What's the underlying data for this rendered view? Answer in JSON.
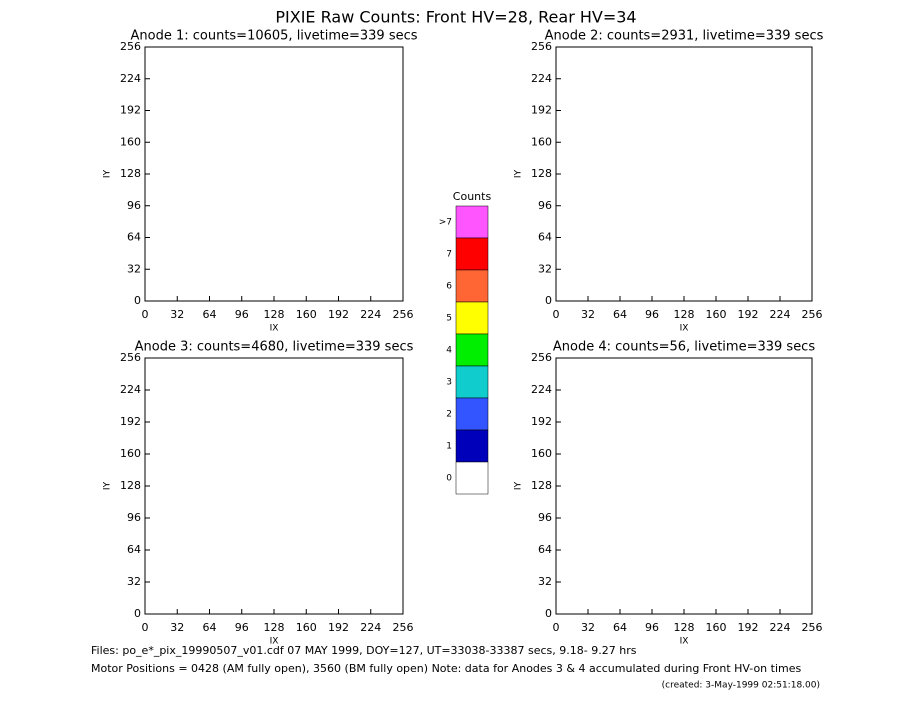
{
  "title": "PIXIE Raw Counts:  Front HV=28, Rear HV=34",
  "chart_data": [
    {
      "type": "scatter",
      "title": "Anode 1: counts=10605, livetime=339 secs",
      "xlabel": "IX",
      "ylabel": "IY",
      "xlim": [
        0,
        256
      ],
      "ylim": [
        0,
        256
      ],
      "xticks": [
        0,
        32,
        64,
        96,
        128,
        160,
        192,
        224,
        256
      ],
      "yticks": [
        0,
        32,
        64,
        96,
        128,
        160,
        192,
        224,
        256
      ]
    },
    {
      "type": "scatter",
      "title": "Anode 2: counts=2931, livetime=339 secs",
      "xlabel": "IX",
      "ylabel": "IY",
      "xlim": [
        0,
        256
      ],
      "ylim": [
        0,
        256
      ],
      "xticks": [
        0,
        32,
        64,
        96,
        128,
        160,
        192,
        224,
        256
      ],
      "yticks": [
        0,
        32,
        64,
        96,
        128,
        160,
        192,
        224,
        256
      ]
    },
    {
      "type": "scatter",
      "title": "Anode 3: counts=4680, livetime=339 secs",
      "xlabel": "IX",
      "ylabel": "IY",
      "xlim": [
        0,
        256
      ],
      "ylim": [
        0,
        256
      ],
      "xticks": [
        0,
        32,
        64,
        96,
        128,
        160,
        192,
        224,
        256
      ],
      "yticks": [
        0,
        32,
        64,
        96,
        128,
        160,
        192,
        224,
        256
      ]
    },
    {
      "type": "scatter",
      "title": "Anode 4: counts=56, livetime=339 secs",
      "xlabel": "IX",
      "ylabel": "IY",
      "xlim": [
        0,
        256
      ],
      "ylim": [
        0,
        256
      ],
      "xticks": [
        0,
        32,
        64,
        96,
        128,
        160,
        192,
        224,
        256
      ],
      "yticks": [
        0,
        32,
        64,
        96,
        128,
        160,
        192,
        224,
        256
      ]
    }
  ],
  "colorbar": {
    "title": "Counts",
    "levels": [
      {
        "label": ">7",
        "color": "#ff55ff"
      },
      {
        "label": "7",
        "color": "#ff0000"
      },
      {
        "label": "6",
        "color": "#ff6633"
      },
      {
        "label": "5",
        "color": "#ffff00"
      },
      {
        "label": "4",
        "color": "#00ee00"
      },
      {
        "label": "3",
        "color": "#11cccc"
      },
      {
        "label": "2",
        "color": "#3355ff"
      },
      {
        "label": "1",
        "color": "#0000bb"
      },
      {
        "label": "0",
        "color": "#ffffff"
      }
    ]
  },
  "footer": {
    "files": "Files: po_e*_pix_19990507_v01.cdf    07 MAY 1999, DOY=127, UT=33038-33387 secs,  9.18- 9.27 hrs",
    "motor": "Motor Positions = 0428 (AM fully open), 3560 (BM fully open)    Note: data for Anodes 3 & 4 accumulated during Front HV-on times",
    "created": "(created:  3-May-1999 02:51:18.00)"
  }
}
